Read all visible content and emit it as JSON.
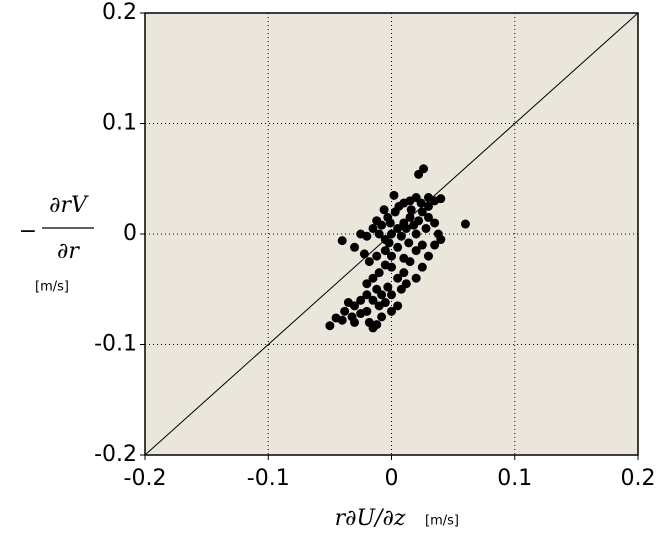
{
  "chart_data": {
    "type": "scatter",
    "x_label": "r∂U/∂z",
    "x_unit": "[m/s]",
    "y_label_sign": "−",
    "y_label_numerator": "∂rV",
    "y_label_denominator": "∂r",
    "y_unit": "[m/s]",
    "xlim": [
      -0.2,
      0.2
    ],
    "ylim": [
      -0.2,
      0.2
    ],
    "xticks": [
      -0.2,
      -0.1,
      0,
      0.1,
      0.2
    ],
    "yticks": [
      -0.2,
      -0.1,
      0,
      0.1,
      0.2
    ],
    "grid": true,
    "diagonal": true,
    "background": "#eae6dc",
    "series": [
      {
        "color": "#000000",
        "x": [
          0.06,
          0.026,
          0.022,
          0.04,
          0.035,
          0.03,
          0.02,
          0.015,
          0.01,
          0.025,
          0.03,
          0.035,
          0.038,
          0.04,
          0.025,
          0.02,
          0.015,
          0.01,
          0.005,
          0.0,
          -0.005,
          0.008,
          0.012,
          0.018,
          0.02,
          0.003,
          -0.003,
          -0.008,
          -0.01,
          -0.015,
          -0.02,
          -0.025,
          -0.04,
          -0.03,
          -0.022,
          -0.018,
          -0.012,
          -0.005,
          0.0,
          0.005,
          0.01,
          0.015,
          0.01,
          0.005,
          0.0,
          -0.005,
          -0.01,
          -0.015,
          -0.02,
          -0.012,
          -0.008,
          -0.003,
          0.0,
          -0.005,
          -0.01,
          -0.015,
          -0.02,
          -0.025,
          -0.03,
          -0.035,
          -0.038,
          -0.032,
          -0.04,
          -0.045,
          -0.05,
          -0.03,
          -0.015,
          -0.012,
          -0.018,
          -0.02,
          -0.025,
          0.005,
          0.0,
          -0.008,
          0.008,
          0.012,
          0.02,
          0.025,
          0.03,
          0.035,
          0.03,
          0.024,
          0.028,
          -0.001,
          0.006,
          0.002,
          -0.006,
          -0.012,
          0.014,
          -0.002,
          0.016,
          0.022
        ],
        "values": [
          0.009,
          0.059,
          0.054,
          0.032,
          0.03,
          0.033,
          0.033,
          0.03,
          0.028,
          0.02,
          0.015,
          0.01,
          0.0,
          -0.005,
          -0.01,
          -0.015,
          0.015,
          0.01,
          0.005,
          0.0,
          -0.005,
          -0.002,
          0.005,
          0.008,
          0.0,
          0.02,
          0.015,
          0.008,
          0.0,
          0.005,
          -0.002,
          0.0,
          -0.006,
          -0.012,
          -0.018,
          -0.025,
          -0.02,
          -0.015,
          -0.02,
          -0.012,
          -0.022,
          -0.025,
          -0.035,
          -0.04,
          -0.03,
          -0.028,
          -0.035,
          -0.04,
          -0.045,
          -0.05,
          -0.055,
          -0.048,
          -0.055,
          -0.062,
          -0.065,
          -0.06,
          -0.055,
          -0.06,
          -0.065,
          -0.062,
          -0.07,
          -0.075,
          -0.078,
          -0.076,
          -0.083,
          -0.08,
          -0.085,
          -0.082,
          -0.08,
          -0.07,
          -0.072,
          -0.065,
          -0.07,
          -0.075,
          -0.05,
          -0.045,
          -0.04,
          -0.03,
          -0.02,
          -0.01,
          0.025,
          0.028,
          0.005,
          0.01,
          0.025,
          0.035,
          0.022,
          0.012,
          -0.008,
          -0.008,
          0.022,
          0.012
        ]
      }
    ]
  }
}
